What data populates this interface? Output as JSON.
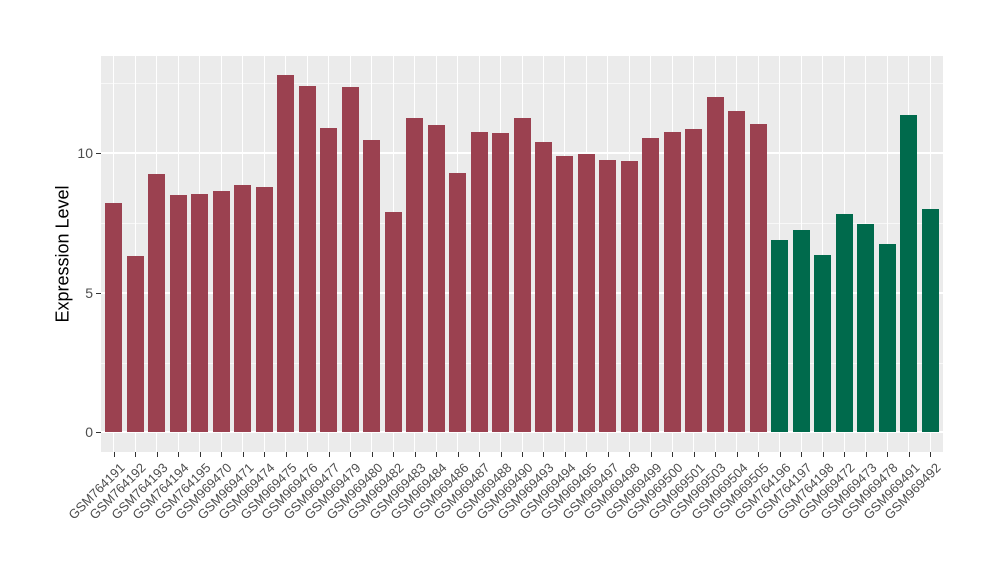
{
  "chart_data": {
    "type": "bar",
    "title": "",
    "xlabel": "",
    "ylabel": "Expression Level",
    "ylim": [
      0,
      13.47
    ],
    "yticks": [
      0,
      5,
      10
    ],
    "ytick_labels": [
      "0",
      "5",
      "10"
    ],
    "grid": true,
    "legend": "none",
    "palette": {
      "maroon": "#9B4150",
      "green": "#006A4C"
    },
    "categories": [
      "GSM764191",
      "GSM764192",
      "GSM764193",
      "GSM764194",
      "GSM764195",
      "GSM969470",
      "GSM969471",
      "GSM969474",
      "GSM969475",
      "GSM969476",
      "GSM969477",
      "GSM969479",
      "GSM969480",
      "GSM969482",
      "GSM969483",
      "GSM969484",
      "GSM969486",
      "GSM969487",
      "GSM969488",
      "GSM969490",
      "GSM969493",
      "GSM969494",
      "GSM969495",
      "GSM969497",
      "GSM969498",
      "GSM969499",
      "GSM969500",
      "GSM969501",
      "GSM969503",
      "GSM969504",
      "GSM969505",
      "GSM764196",
      "GSM764197",
      "GSM764198",
      "GSM969472",
      "GSM969473",
      "GSM969478",
      "GSM969491",
      "GSM969492"
    ],
    "values": [
      8.2,
      6.3,
      9.25,
      8.5,
      8.55,
      8.65,
      8.85,
      8.8,
      12.8,
      12.4,
      10.9,
      12.35,
      10.45,
      7.9,
      11.25,
      11.0,
      9.3,
      10.75,
      10.7,
      11.25,
      10.4,
      9.9,
      9.95,
      9.75,
      9.7,
      10.55,
      10.75,
      10.85,
      12.0,
      11.5,
      11.05,
      6.9,
      7.25,
      6.35,
      7.8,
      7.45,
      6.75,
      11.35,
      8.0
    ],
    "bar_groups": [
      "maroon",
      "maroon",
      "maroon",
      "maroon",
      "maroon",
      "maroon",
      "maroon",
      "maroon",
      "maroon",
      "maroon",
      "maroon",
      "maroon",
      "maroon",
      "maroon",
      "maroon",
      "maroon",
      "maroon",
      "maroon",
      "maroon",
      "maroon",
      "maroon",
      "maroon",
      "maroon",
      "maroon",
      "maroon",
      "maroon",
      "maroon",
      "maroon",
      "maroon",
      "maroon",
      "maroon",
      "green",
      "green",
      "green",
      "green",
      "green",
      "green",
      "green",
      "green"
    ],
    "minor_gridlines": [
      2.5,
      7.5,
      12.5
    ]
  },
  "style": {
    "figure_bg": "#FFFFFF",
    "panel_bg": "#EBEBEB",
    "grid_color": "#FFFFFF",
    "axis_text_color": "#4D4D4D",
    "axis_title_color": "#000000",
    "tick_color": "#333333"
  }
}
